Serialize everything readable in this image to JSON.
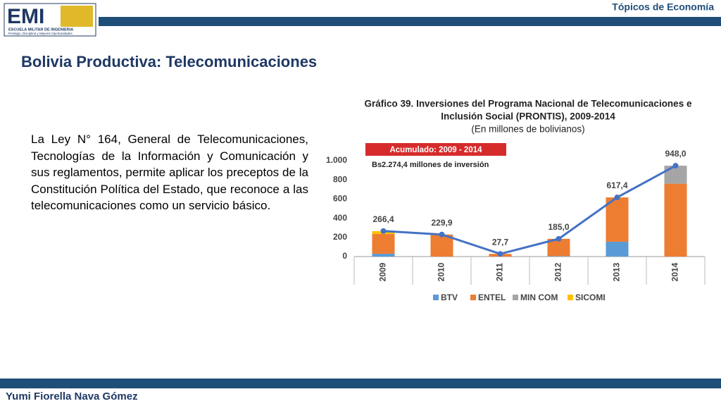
{
  "header": {
    "logo": "EMI",
    "school": "ESCUELA MILITAR DE INGENIERIA",
    "motto": "Prestigio, Disciplina y Mejores Oportunidades",
    "topic": "Tópicos de Economía"
  },
  "title": "Bolivia Productiva: Telecomunicaciones",
  "body": "La Ley N° 164, General de Telecomunicaciones, Tecnologías de la Información y Comunicación y sus reglamentos, permite aplicar los preceptos de la Constitución Política del Estado, que reconoce a las telecomunicaciones como un servicio básico.",
  "footer": "Yumi Fiorella Nava Gómez",
  "chart_data": {
    "type": "bar",
    "stacked": true,
    "title": [
      "Gráfico 39. Inversiones del Programa Nacional de Telecomunicaciones e",
      "Inclusión Social (PRONTIS), 2009-2014"
    ],
    "subtitle": "(En millones de bolivianos)",
    "annotations": [
      "Acumulado: 2009 - 2014",
      "Bs2.274,4 millones de inversión"
    ],
    "categories": [
      "2009",
      "2010",
      "2011",
      "2012",
      "2013",
      "2014"
    ],
    "series": [
      {
        "name": "BTV",
        "color": "#5b9bd5",
        "values": [
          30,
          0,
          0,
          5,
          155,
          0
        ]
      },
      {
        "name": "ENTEL",
        "color": "#ed7d31",
        "values": [
          205,
          230,
          28,
          180,
          462,
          760
        ]
      },
      {
        "name": "MIN COM",
        "color": "#a5a5a5",
        "values": [
          0,
          0,
          0,
          0,
          0,
          188
        ]
      },
      {
        "name": "SICOMI",
        "color": "#ffc000",
        "values": [
          30,
          0,
          0,
          0,
          0,
          0
        ]
      }
    ],
    "line": {
      "color": "#4472c4",
      "values": [
        266.4,
        229.9,
        27.7,
        185.0,
        617.4,
        948.0
      ],
      "value_labels": [
        "266,4",
        "229,9",
        "27,7",
        "185,0",
        "617,4",
        "948,0"
      ]
    },
    "ylim": [
      0,
      1000
    ],
    "yticks": [
      0,
      200,
      400,
      600,
      800,
      {
        "value": 1000,
        "label": "1.000"
      }
    ],
    "grid": false,
    "legend": "bottom"
  }
}
